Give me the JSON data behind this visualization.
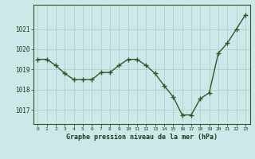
{
  "x": [
    0,
    1,
    2,
    3,
    4,
    5,
    6,
    7,
    8,
    9,
    10,
    11,
    12,
    13,
    14,
    15,
    16,
    17,
    18,
    19,
    20,
    21,
    22,
    23
  ],
  "y": [
    1019.5,
    1019.5,
    1019.2,
    1018.8,
    1018.5,
    1018.5,
    1018.5,
    1018.85,
    1018.85,
    1019.2,
    1019.5,
    1019.5,
    1019.2,
    1018.8,
    1018.2,
    1017.65,
    1016.75,
    1016.75,
    1017.55,
    1017.85,
    1019.8,
    1020.3,
    1021.0,
    1021.7
  ],
  "line_color": "#2d5a27",
  "marker": "+",
  "marker_color": "#2d5a27",
  "bg_color": "#cce8e8",
  "grid_color": "#aacccc",
  "xlabel": "Graphe pression niveau de la mer (hPa)",
  "xlabel_color": "#1a3d1a",
  "tick_color": "#1a3d1a",
  "ylim": [
    1016.3,
    1022.2
  ],
  "yticks": [
    1017,
    1018,
    1019,
    1020,
    1021
  ],
  "xlim": [
    -0.5,
    23.5
  ],
  "xticks": [
    0,
    1,
    2,
    3,
    4,
    5,
    6,
    7,
    8,
    9,
    10,
    11,
    12,
    13,
    14,
    15,
    16,
    17,
    18,
    19,
    20,
    21,
    22,
    23
  ],
  "xtick_labels": [
    "0",
    "1",
    "2",
    "3",
    "4",
    "5",
    "6",
    "7",
    "8",
    "9",
    "10",
    "11",
    "12",
    "13",
    "14",
    "15",
    "16",
    "17",
    "18",
    "19",
    "20",
    "21",
    "22",
    "23"
  ],
  "frame_color": "#2d5a27",
  "line_width": 1.0,
  "marker_size": 4
}
